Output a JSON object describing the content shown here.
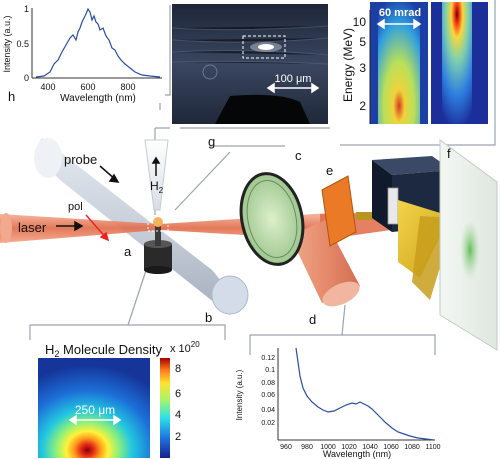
{
  "panel_labels": {
    "a": "a",
    "b": "b",
    "c": "c",
    "d": "d",
    "e": "e",
    "f": "f",
    "g": "g",
    "h": "h"
  },
  "scene_labels": {
    "probe": "probe",
    "pol": "pol",
    "laser": "laser",
    "h2": "H",
    "h2_sub": "2"
  },
  "spectrum_h": {
    "ylabel": "Intensity (a.u.)",
    "xlabel": "Wavelength (nm)",
    "y_ticks": [
      "0",
      "0.5",
      "1"
    ],
    "x_ticks": [
      "400",
      "600",
      "800"
    ],
    "color": "#2a4ea0"
  },
  "image_g": {
    "scale_label": "100 μm"
  },
  "energy_panel": {
    "ylabel": "Energy (MeV)",
    "angle_label": "60 mrad",
    "y_ticks": [
      "10",
      "5",
      "3",
      "2"
    ]
  },
  "density_panel": {
    "title_main": "H",
    "title_sub": "2",
    "title_rest": " Molecule Density",
    "scale_label": "250 μm",
    "colorbar_exp_base": "x 10",
    "colorbar_exp_power": "20",
    "colorbar_ticks": [
      "8",
      "6",
      "4",
      "2"
    ]
  },
  "spectrum_d": {
    "ylabel": "Intensity (a.u.)",
    "xlabel": "Wavelength (nm)",
    "y_ticks": [
      "0.12",
      "0.1",
      "0.08",
      "0.06",
      "0.04",
      "0.02"
    ],
    "x_ticks": [
      "960",
      "980",
      "1000",
      "1020",
      "1040",
      "1060",
      "1080",
      "1100"
    ],
    "color": "#2a4ea0"
  },
  "colors": {
    "laser": "#e0785a",
    "probe": "#b8c2d0",
    "accent": "#c05030",
    "lens_ring": "#222222"
  }
}
